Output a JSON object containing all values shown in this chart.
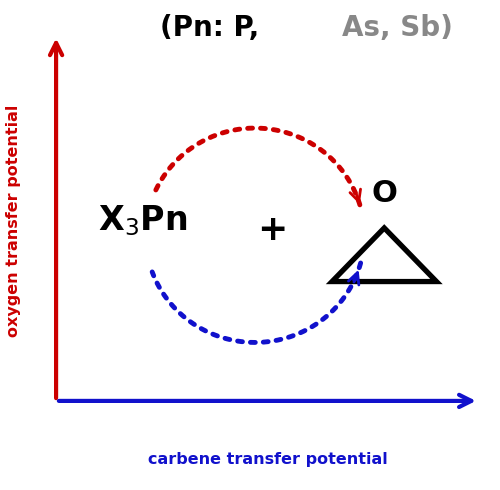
{
  "background_color": "#ffffff",
  "ylabel": "oxygen transfer potential",
  "xlabel": "carbene transfer potential",
  "ylabel_color": "#cc0000",
  "xlabel_color": "#1111cc",
  "arrow_y_color": "#cc0000",
  "arrow_x_color": "#1111cc",
  "arc_red_color": "#cc0000",
  "arc_blue_color": "#1111cc",
  "title_black": "(Pn: P, ",
  "title_gray": "As, Sb)",
  "title_black_color": "#000000",
  "title_gray_color": "#888888",
  "figsize": [
    5.0,
    4.9
  ],
  "dpi": 100
}
